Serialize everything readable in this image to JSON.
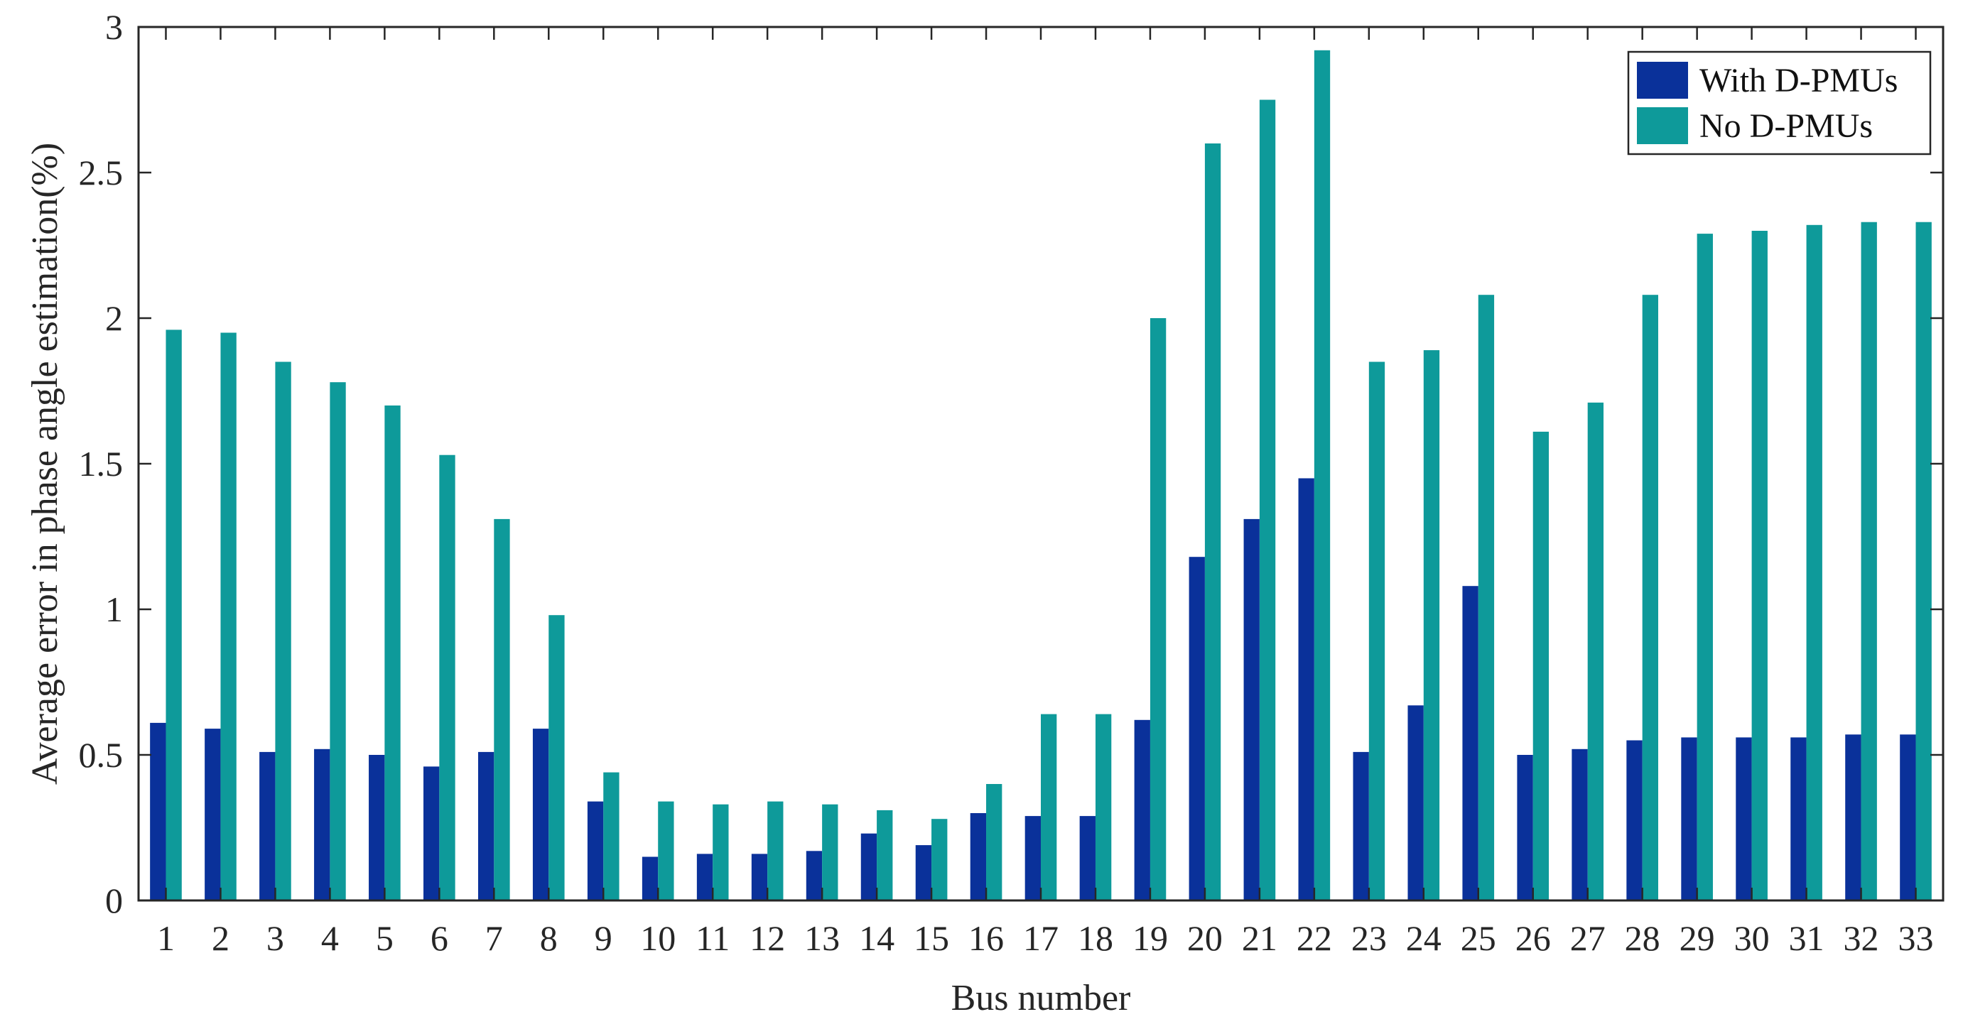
{
  "chart_data": {
    "type": "bar",
    "title": "",
    "xlabel": "Bus number",
    "ylabel": "Average error in phase angle estimation(%)",
    "ylim": [
      0,
      3
    ],
    "yticks": [
      "0",
      "0.5",
      "1",
      "1.5",
      "2",
      "2.5",
      "3"
    ],
    "categories": [
      "1",
      "2",
      "3",
      "4",
      "5",
      "6",
      "7",
      "8",
      "9",
      "10",
      "11",
      "12",
      "13",
      "14",
      "15",
      "16",
      "17",
      "18",
      "19",
      "20",
      "21",
      "22",
      "23",
      "24",
      "25",
      "26",
      "27",
      "28",
      "29",
      "30",
      "31",
      "32",
      "33"
    ],
    "series": [
      {
        "name": "With D-PMUs",
        "color": "#0A319A",
        "values": [
          0.61,
          0.59,
          0.51,
          0.52,
          0.5,
          0.46,
          0.51,
          0.59,
          0.34,
          0.15,
          0.16,
          0.16,
          0.17,
          0.23,
          0.19,
          0.3,
          0.29,
          0.29,
          0.62,
          1.18,
          1.31,
          1.45,
          0.51,
          0.67,
          1.08,
          0.5,
          0.52,
          0.55,
          0.56,
          0.56,
          0.56,
          0.57,
          0.57
        ]
      },
      {
        "name": "No D-PMUs",
        "color": "#0E9A9A",
        "values": [
          1.96,
          1.95,
          1.85,
          1.78,
          1.7,
          1.53,
          1.31,
          0.98,
          0.44,
          0.34,
          0.33,
          0.34,
          0.33,
          0.31,
          0.28,
          0.4,
          0.64,
          0.64,
          2.0,
          2.6,
          2.75,
          2.92,
          1.85,
          1.89,
          2.08,
          1.61,
          1.71,
          2.08,
          2.29,
          2.3,
          2.32,
          2.33,
          2.33
        ]
      }
    ],
    "grid": false,
    "legend": "top-right"
  }
}
